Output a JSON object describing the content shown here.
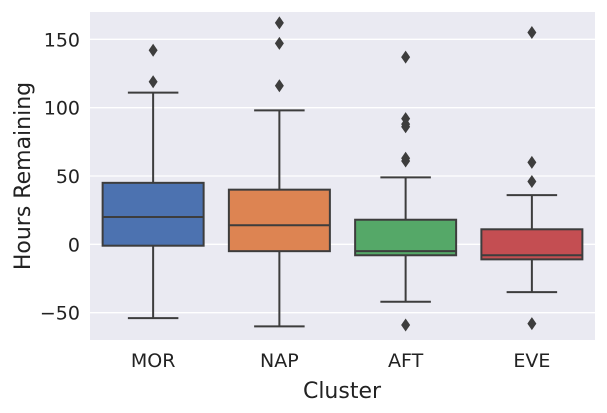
{
  "chart_data": {
    "type": "box",
    "xlabel": "Cluster",
    "ylabel": "Hours Remaining",
    "ylim": [
      -70,
      170
    ],
    "yticks": [
      -50,
      0,
      50,
      100,
      150
    ],
    "ytick_labels": [
      "−50",
      "0",
      "50",
      "100",
      "150"
    ],
    "grid": true,
    "colors": {
      "background": "#eaeaf2",
      "gridline": "#ffffff",
      "box_edge": "#3d3d3d"
    },
    "boxes": [
      {
        "name": "MOR",
        "color": "#4c72b0",
        "q1": -1,
        "median": 20,
        "q3": 45,
        "whisker_low": -54,
        "whisker_high": 111,
        "outliers": [
          119,
          142
        ]
      },
      {
        "name": "NAP",
        "color": "#dd8452",
        "q1": -5,
        "median": 14,
        "q3": 40,
        "whisker_low": -60,
        "whisker_high": 98,
        "outliers": [
          116,
          147,
          162
        ]
      },
      {
        "name": "AFT",
        "color": "#55a868",
        "q1": -8,
        "median": -5,
        "q3": 18,
        "whisker_low": -42,
        "whisker_high": 49,
        "outliers": [
          -59,
          61,
          63,
          86,
          88,
          92,
          137
        ]
      },
      {
        "name": "EVE",
        "color": "#c44e52",
        "q1": -11,
        "median": -8,
        "q3": 11,
        "whisker_low": -35,
        "whisker_high": 36,
        "outliers": [
          -58,
          46,
          60,
          155
        ]
      }
    ]
  }
}
